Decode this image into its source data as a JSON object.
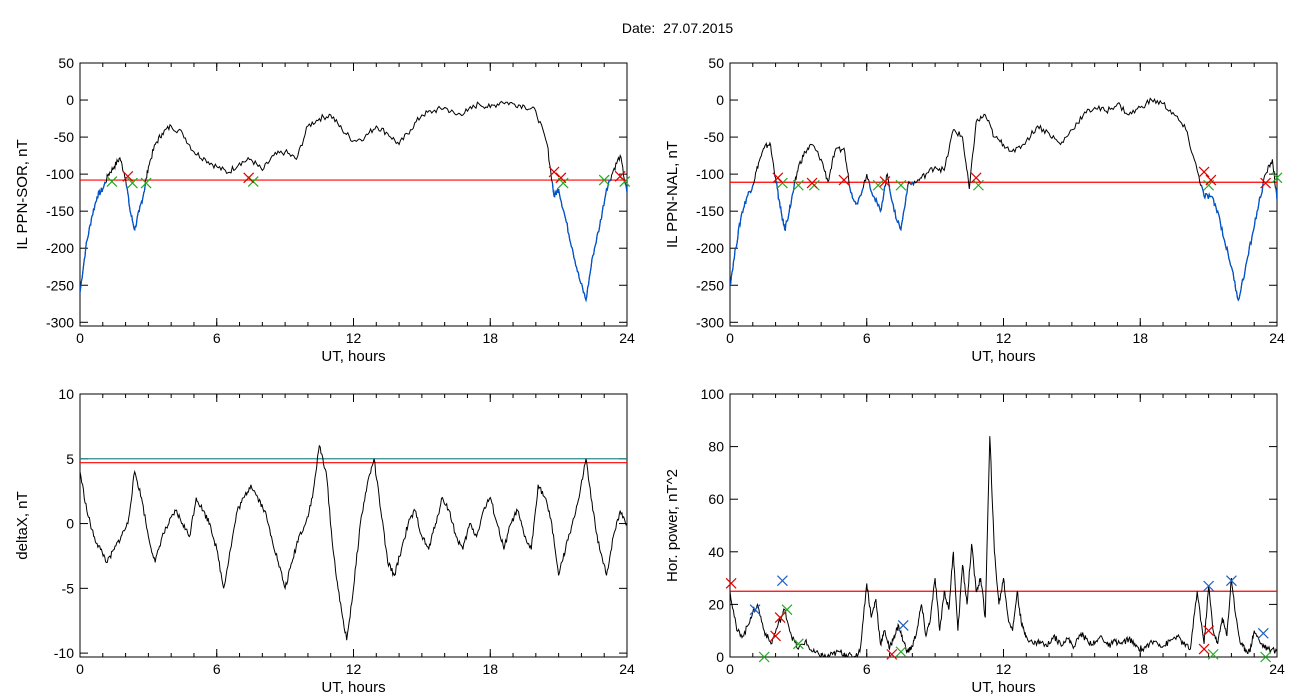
{
  "title": "Date:  27.07.2015",
  "colors": {
    "trace": "#000000",
    "below": "#0055cc",
    "threshold": "#ff0000",
    "threshold2": "#2e8b8b",
    "mark_red": "#e00000",
    "mark_green": "#22aa22",
    "mark_blue": "#1f5fbf"
  },
  "chart_data": [
    {
      "type": "line",
      "id": "p1",
      "xlabel": "UT, hours",
      "ylabel": "IL PPN-SOR, nT",
      "xlim": [
        0,
        24
      ],
      "ylim": [
        -305,
        50
      ],
      "xticks": [
        0,
        6,
        12,
        18,
        24
      ],
      "yticks": [
        -300,
        -250,
        -200,
        -150,
        -100,
        -50,
        0,
        50
      ],
      "threshold": -108,
      "below_color_rule": "values below threshold drawn blue",
      "x": [
        0,
        0.25,
        0.5,
        0.75,
        1.0,
        1.25,
        1.5,
        1.75,
        2.0,
        2.2,
        2.4,
        2.6,
        2.8,
        3.0,
        3.3,
        3.6,
        4.0,
        4.5,
        5.0,
        5.5,
        6.0,
        6.5,
        7.0,
        7.5,
        8.0,
        8.5,
        9.0,
        9.5,
        10.0,
        10.5,
        11.0,
        11.5,
        12.0,
        12.5,
        13.0,
        13.5,
        14.0,
        14.5,
        15.0,
        15.5,
        16.0,
        16.5,
        17.0,
        17.5,
        18.0,
        18.5,
        19.0,
        19.5,
        20.0,
        20.5,
        20.8,
        21.0,
        21.3,
        21.6,
        21.9,
        22.2,
        22.5,
        22.8,
        23.1,
        23.4,
        23.7,
        24.0
      ],
      "values": [
        -260,
        -200,
        -160,
        -130,
        -120,
        -100,
        -90,
        -78,
        -105,
        -150,
        -175,
        -150,
        -125,
        -90,
        -60,
        -45,
        -35,
        -45,
        -70,
        -80,
        -90,
        -98,
        -85,
        -80,
        -95,
        -75,
        -70,
        -80,
        -35,
        -25,
        -20,
        -40,
        -55,
        -50,
        -35,
        -45,
        -60,
        -40,
        -20,
        -15,
        -10,
        -20,
        -15,
        -5,
        -10,
        -2,
        -5,
        -8,
        -15,
        -60,
        -130,
        -120,
        -160,
        -200,
        -240,
        -270,
        -210,
        -170,
        -120,
        -95,
        -75,
        -125
      ],
      "marks_red": [
        [
          2.1,
          -103
        ],
        [
          7.4,
          -105
        ],
        [
          20.8,
          -97
        ],
        [
          21.1,
          -105
        ],
        [
          23.7,
          -103
        ]
      ],
      "marks_green": [
        [
          1.4,
          -110
        ],
        [
          2.3,
          -112
        ],
        [
          2.9,
          -112
        ],
        [
          7.6,
          -110
        ],
        [
          21.2,
          -112
        ],
        [
          23.0,
          -108
        ],
        [
          23.9,
          -110
        ]
      ]
    },
    {
      "type": "line",
      "id": "p2",
      "xlabel": "UT, hours",
      "ylabel": "IL PPN-NAL, nT",
      "xlim": [
        0,
        24
      ],
      "ylim": [
        -305,
        50
      ],
      "xticks": [
        0,
        6,
        12,
        18,
        24
      ],
      "yticks": [
        -300,
        -250,
        -200,
        -150,
        -100,
        -50,
        0,
        50
      ],
      "threshold": -111,
      "below_color_rule": "values below threshold drawn blue",
      "x": [
        0,
        0.25,
        0.5,
        0.75,
        1.0,
        1.25,
        1.5,
        1.75,
        2.0,
        2.2,
        2.4,
        2.6,
        2.8,
        3.0,
        3.3,
        3.6,
        4.0,
        4.3,
        4.6,
        5.0,
        5.3,
        5.6,
        6.0,
        6.3,
        6.6,
        6.9,
        7.2,
        7.5,
        7.8,
        8.2,
        8.6,
        9.0,
        9.4,
        9.8,
        10.2,
        10.5,
        10.8,
        11.2,
        11.6,
        12.0,
        12.5,
        13.0,
        13.5,
        14.0,
        14.5,
        15.0,
        15.5,
        16.0,
        16.5,
        17.0,
        17.5,
        18.0,
        18.5,
        19.0,
        19.5,
        20.0,
        20.5,
        20.8,
        21.1,
        21.4,
        21.7,
        22.0,
        22.3,
        22.6,
        22.9,
        23.2,
        23.5,
        23.8,
        24.0
      ],
      "values": [
        -250,
        -200,
        -155,
        -130,
        -115,
        -85,
        -65,
        -58,
        -105,
        -145,
        -175,
        -150,
        -120,
        -90,
        -70,
        -60,
        -80,
        -110,
        -70,
        -65,
        -125,
        -140,
        -100,
        -130,
        -150,
        -100,
        -150,
        -175,
        -115,
        -110,
        -100,
        -90,
        -95,
        -40,
        -50,
        -120,
        -30,
        -20,
        -50,
        -60,
        -70,
        -55,
        -35,
        -45,
        -60,
        -40,
        -20,
        -10,
        -15,
        -5,
        -20,
        -10,
        0,
        -5,
        -20,
        -40,
        -95,
        -130,
        -130,
        -150,
        -190,
        -225,
        -270,
        -230,
        -185,
        -140,
        -100,
        -80,
        -135
      ],
      "marks_red": [
        [
          2.1,
          -105
        ],
        [
          3.6,
          -112
        ],
        [
          5.0,
          -108
        ],
        [
          6.8,
          -110
        ],
        [
          10.8,
          -105
        ],
        [
          20.8,
          -97
        ],
        [
          21.1,
          -108
        ],
        [
          23.5,
          -112
        ]
      ],
      "marks_green": [
        [
          2.3,
          -112
        ],
        [
          3.0,
          -115
        ],
        [
          3.7,
          -115
        ],
        [
          6.5,
          -115
        ],
        [
          7.5,
          -115
        ],
        [
          10.9,
          -115
        ],
        [
          21.0,
          -115
        ],
        [
          24.0,
          -105
        ]
      ]
    },
    {
      "type": "line",
      "id": "p3",
      "xlabel": "UT, hours",
      "ylabel": "deltaX, nT",
      "xlim": [
        0,
        24
      ],
      "ylim": [
        -10.3,
        10
      ],
      "xticks": [
        0,
        6,
        12,
        18,
        24
      ],
      "yticks": [
        -10,
        -5,
        0,
        5,
        10
      ],
      "threshold": 4.7,
      "threshold2": 5.0,
      "x": [
        0,
        0.3,
        0.6,
        0.9,
        1.2,
        1.5,
        1.8,
        2.1,
        2.4,
        2.7,
        3.0,
        3.3,
        3.6,
        3.9,
        4.2,
        4.5,
        4.8,
        5.1,
        5.4,
        5.7,
        6.0,
        6.3,
        6.6,
        6.9,
        7.2,
        7.5,
        7.8,
        8.1,
        8.4,
        8.7,
        9.0,
        9.3,
        9.6,
        9.9,
        10.2,
        10.5,
        10.8,
        11.1,
        11.4,
        11.7,
        12.0,
        12.3,
        12.6,
        12.9,
        13.2,
        13.5,
        13.8,
        14.1,
        14.4,
        14.7,
        15.0,
        15.3,
        15.6,
        15.9,
        16.2,
        16.5,
        16.8,
        17.1,
        17.4,
        17.7,
        18.0,
        18.3,
        18.6,
        18.9,
        19.2,
        19.5,
        19.8,
        20.1,
        20.4,
        20.7,
        21.0,
        21.3,
        21.6,
        21.9,
        22.2,
        22.5,
        22.8,
        23.1,
        23.4,
        23.7,
        24.0
      ],
      "values": [
        4,
        1,
        -1,
        -2,
        -3,
        -2,
        -1,
        0,
        4,
        2,
        -1,
        -3,
        -1,
        0,
        1,
        0,
        -1,
        2,
        1,
        0,
        -2,
        -5,
        -2,
        1,
        2,
        3,
        2,
        1,
        -1,
        -3,
        -5,
        -3,
        -1,
        0,
        2,
        6,
        4,
        -2,
        -6,
        -9,
        -5,
        0,
        3,
        5,
        1,
        -3,
        -4,
        -2,
        0,
        1,
        -1,
        -2,
        0,
        2,
        1,
        -1,
        -2,
        0,
        -1,
        1,
        2,
        0,
        -2,
        0,
        1,
        -1,
        -2,
        3,
        2,
        0,
        -4,
        -2,
        0,
        2,
        5,
        1,
        -2,
        -4,
        -1,
        1,
        0
      ],
      "marks_red": [],
      "marks_green": []
    },
    {
      "type": "line",
      "id": "p4",
      "xlabel": "UT, hours",
      "ylabel": "Hor. power, nT^2",
      "xlim": [
        0,
        24
      ],
      "ylim": [
        0,
        100
      ],
      "xticks": [
        0,
        6,
        12,
        18,
        24
      ],
      "yticks": [
        0,
        20,
        40,
        60,
        80,
        100
      ],
      "threshold": 25,
      "x": [
        0,
        0.3,
        0.6,
        0.9,
        1.2,
        1.5,
        1.8,
        2.1,
        2.4,
        2.7,
        3.0,
        3.3,
        3.6,
        3.9,
        4.2,
        4.5,
        4.8,
        5.1,
        5.4,
        5.7,
        6.0,
        6.2,
        6.4,
        6.6,
        6.8,
        7.0,
        7.2,
        7.4,
        7.6,
        7.8,
        8.0,
        8.2,
        8.4,
        8.6,
        8.8,
        9.0,
        9.2,
        9.4,
        9.6,
        9.8,
        10.0,
        10.2,
        10.4,
        10.6,
        10.8,
        11.0,
        11.2,
        11.4,
        11.6,
        11.8,
        12.0,
        12.2,
        12.4,
        12.6,
        12.8,
        13.0,
        13.3,
        13.6,
        13.9,
        14.2,
        14.5,
        14.8,
        15.1,
        15.4,
        15.7,
        16.0,
        16.3,
        16.6,
        16.9,
        17.2,
        17.5,
        17.8,
        18.1,
        18.4,
        18.7,
        19.0,
        19.3,
        19.6,
        19.9,
        20.2,
        20.5,
        20.8,
        21.0,
        21.2,
        21.4,
        21.6,
        21.8,
        22.0,
        22.2,
        22.4,
        22.6,
        22.8,
        23.0,
        23.3,
        23.6,
        24.0
      ],
      "values": [
        25,
        10,
        8,
        15,
        20,
        10,
        5,
        12,
        18,
        8,
        3,
        6,
        2,
        1,
        0,
        1,
        2,
        1,
        0,
        2,
        28,
        15,
        22,
        5,
        10,
        3,
        8,
        12,
        6,
        2,
        4,
        10,
        20,
        8,
        15,
        30,
        10,
        25,
        18,
        40,
        10,
        35,
        20,
        43,
        25,
        30,
        15,
        84,
        40,
        20,
        30,
        15,
        10,
        25,
        12,
        8,
        5,
        6,
        4,
        8,
        5,
        7,
        4,
        9,
        6,
        5,
        8,
        4,
        6,
        5,
        7,
        4,
        3,
        5,
        6,
        4,
        6,
        8,
        5,
        3,
        25,
        5,
        27,
        10,
        5,
        15,
        8,
        30,
        15,
        5,
        3,
        2,
        10,
        5,
        3,
        2
      ],
      "marks_red": [
        [
          0.05,
          28
        ],
        [
          2.0,
          8
        ],
        [
          2.2,
          15
        ],
        [
          7.1,
          1
        ],
        [
          20.8,
          3
        ],
        [
          21.0,
          10
        ]
      ],
      "marks_green": [
        [
          1.5,
          0
        ],
        [
          2.5,
          18
        ],
        [
          3.0,
          5
        ],
        [
          7.5,
          2
        ],
        [
          21.2,
          1
        ],
        [
          23.5,
          0
        ]
      ],
      "marks_blue": [
        [
          1.1,
          18
        ],
        [
          2.3,
          29
        ],
        [
          7.6,
          12
        ],
        [
          21.0,
          27
        ],
        [
          22.0,
          29
        ],
        [
          23.4,
          9
        ]
      ]
    }
  ]
}
